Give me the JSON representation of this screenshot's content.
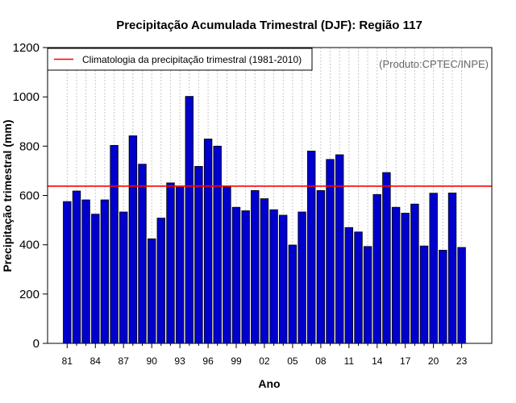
{
  "chart_data": {
    "type": "bar",
    "title": "Precipitação Acumulada Trimestral (DJF): Região 117",
    "xlabel": "Ano",
    "ylabel": "Precipitação trimestral (mm)",
    "ylim": [
      0,
      1200
    ],
    "yticks": [
      0,
      200,
      400,
      600,
      800,
      1000,
      1200
    ],
    "x_tick_labels": [
      "81",
      "84",
      "87",
      "90",
      "93",
      "96",
      "99",
      "02",
      "05",
      "08",
      "11",
      "14",
      "17",
      "20",
      "23"
    ],
    "categories": [
      1981,
      1982,
      1983,
      1984,
      1985,
      1986,
      1987,
      1988,
      1989,
      1990,
      1991,
      1992,
      1993,
      1994,
      1995,
      1996,
      1997,
      1998,
      1999,
      2000,
      2001,
      2002,
      2003,
      2004,
      2005,
      2006,
      2007,
      2008,
      2009,
      2010,
      2011,
      2012,
      2013,
      2014,
      2015,
      2016,
      2017,
      2018,
      2019,
      2020,
      2021,
      2022,
      2023
    ],
    "values": [
      575,
      618,
      582,
      524,
      582,
      803,
      533,
      842,
      727,
      424,
      508,
      651,
      634,
      1002,
      718,
      829,
      800,
      636,
      552,
      538,
      620,
      587,
      542,
      520,
      399,
      533,
      780,
      620,
      746,
      765,
      470,
      452,
      393,
      604,
      693,
      552,
      528,
      565,
      395,
      609,
      378,
      610,
      389
    ],
    "bar_color": "#0000cc",
    "climatology": {
      "value": 638,
      "label": "Climatologia da precipitação trimestral (1981-2010)",
      "color": "#ff0000"
    },
    "legend_position": "top-left",
    "grid": "vertical dotted",
    "credit": "(Produto:CPTEC/INPE)"
  }
}
